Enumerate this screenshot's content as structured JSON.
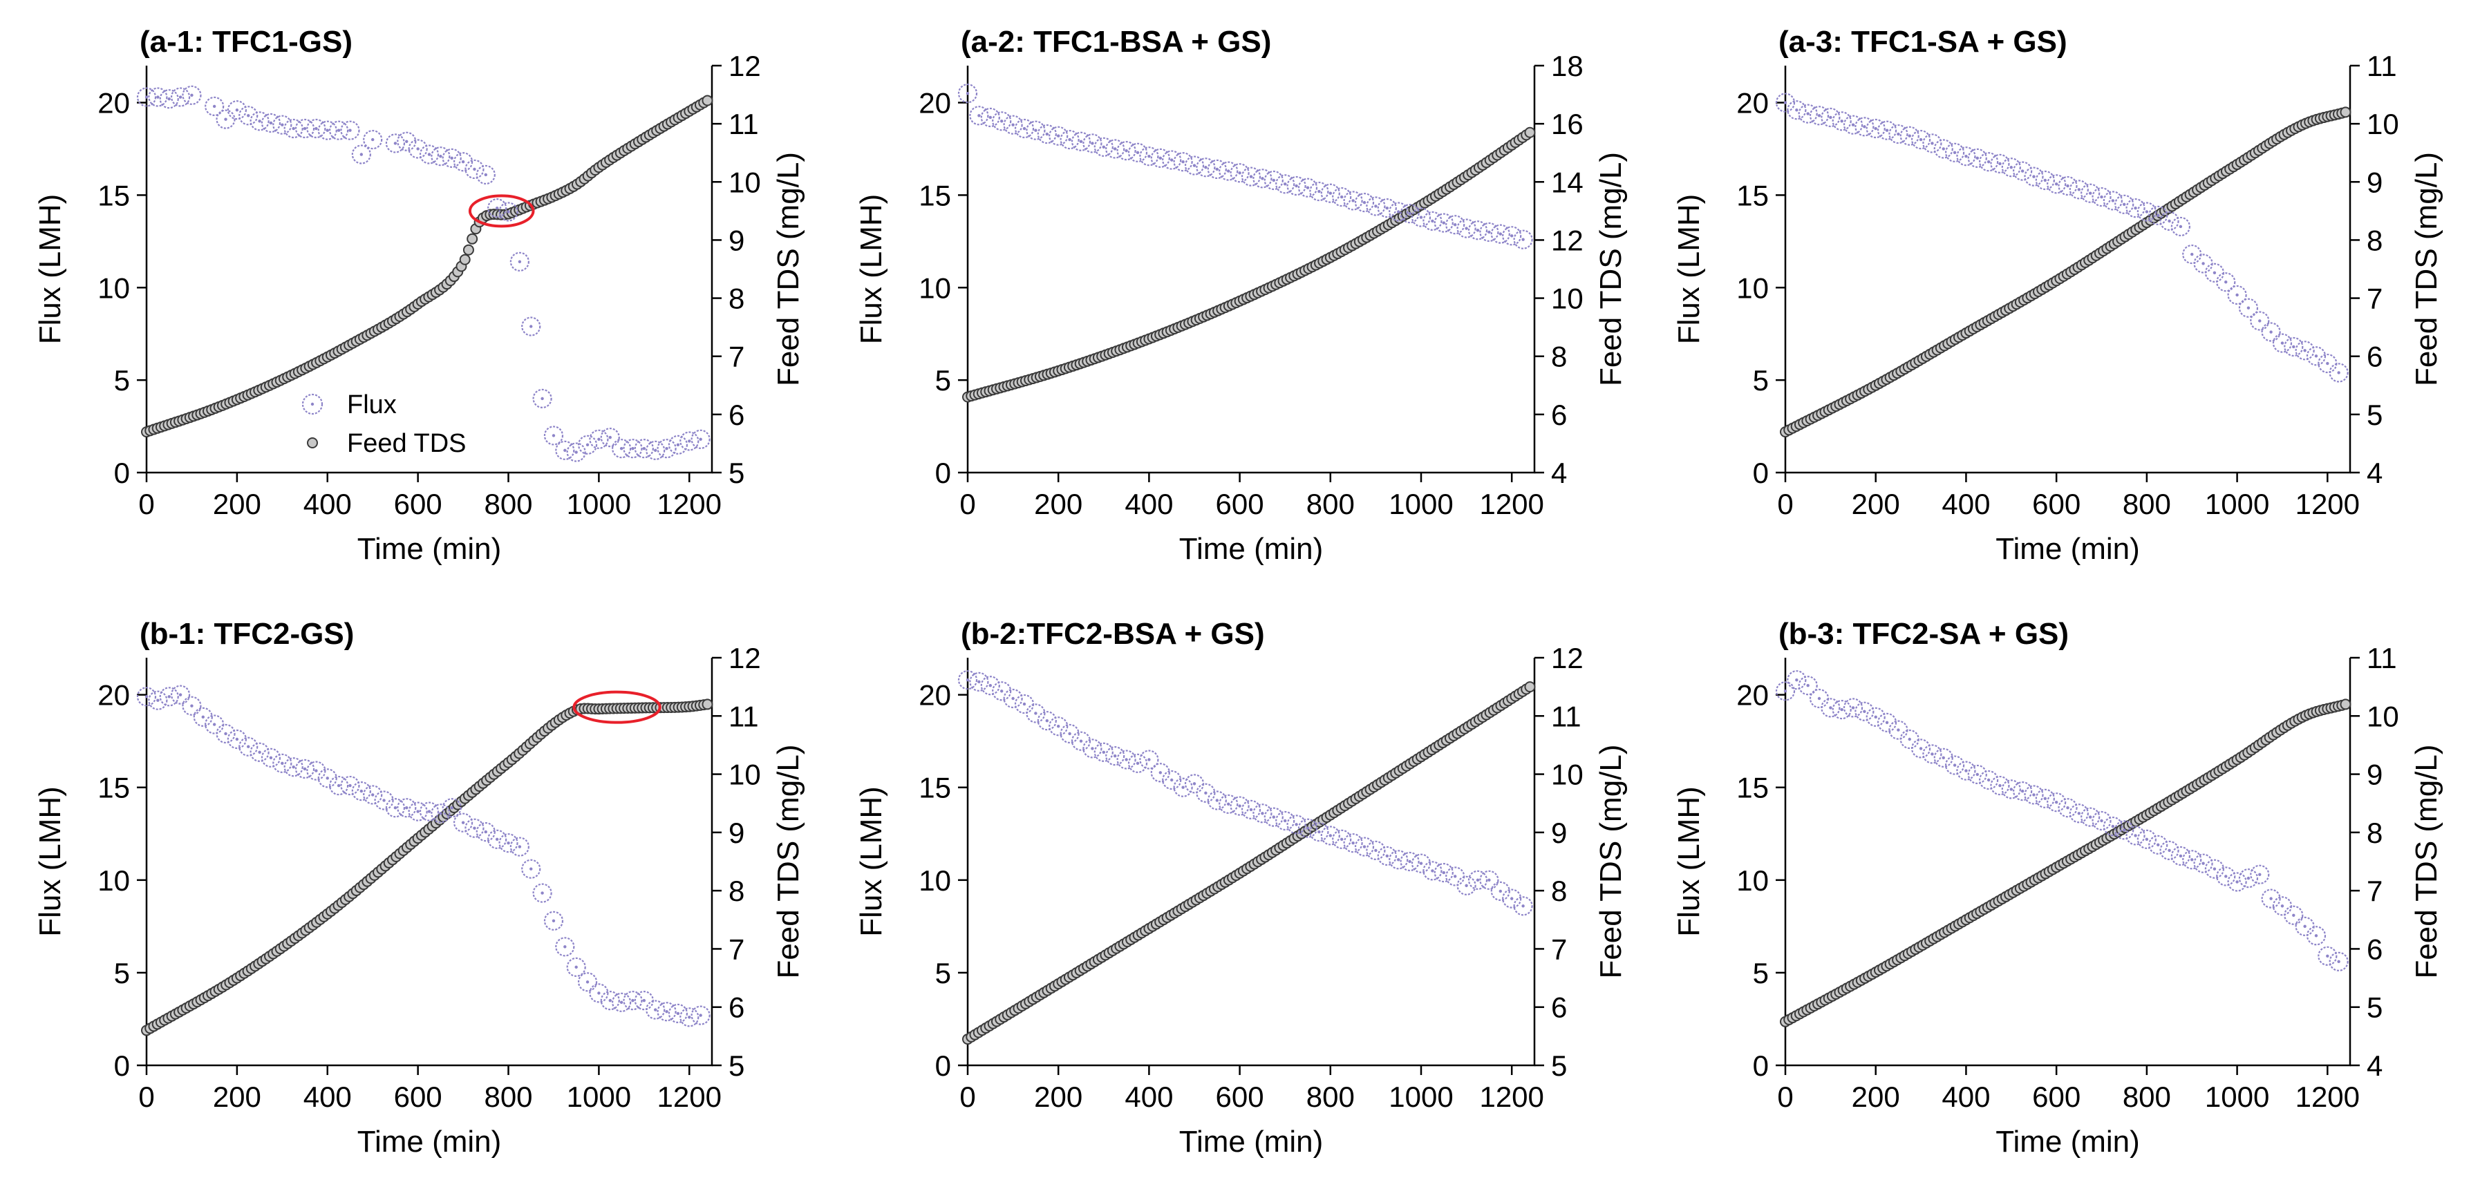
{
  "figure": {
    "description_free": true
  },
  "colors": {
    "flux": "#8d84c8",
    "tds": "#3a3a3a",
    "highlight": "#e8202a",
    "axis": "#000000"
  },
  "legend": {
    "flux_label": "Flux",
    "tds_label": "Feed TDS",
    "placement": "lower-left of panel a-1"
  },
  "chart_data": [
    {
      "id": "a1",
      "type": "scatter",
      "title": "(a-1: TFC1-GS)",
      "xlabel": "Time (min)",
      "ylabel": "Flux (LMH)",
      "y2label": "Feed TDS (mg/L)",
      "xlim": [
        0,
        1250
      ],
      "xticks": [
        0,
        200,
        400,
        600,
        800,
        1000,
        1200
      ],
      "ylim": [
        0,
        22
      ],
      "yticks": [
        0,
        5,
        10,
        15,
        20
      ],
      "y2lim": [
        5,
        12
      ],
      "y2ticks": [
        5,
        6,
        7,
        8,
        9,
        10,
        11,
        12
      ],
      "show_legend": true,
      "highlight": {
        "x_center": 785,
        "x_halfwidth": 70,
        "y2_value": 9.5
      },
      "series": [
        {
          "name": "Flux",
          "axis": "left",
          "marker": "flux",
          "x": [
            0,
            25,
            50,
            75,
            100,
            150,
            175,
            200,
            225,
            250,
            275,
            300,
            325,
            350,
            375,
            400,
            425,
            450,
            475,
            500,
            550,
            575,
            600,
            625,
            650,
            675,
            700,
            725,
            750,
            775,
            800,
            825,
            850,
            875,
            900,
            925,
            950,
            975,
            1000,
            1025,
            1050,
            1075,
            1100,
            1125,
            1150,
            1175,
            1200,
            1225
          ],
          "y": [
            20.3,
            20.3,
            20.2,
            20.3,
            20.4,
            19.8,
            19.1,
            19.6,
            19.3,
            19.0,
            18.9,
            18.8,
            18.6,
            18.6,
            18.6,
            18.5,
            18.5,
            18.5,
            17.2,
            18.0,
            17.8,
            17.9,
            17.5,
            17.2,
            17.1,
            17.0,
            16.8,
            16.4,
            16.1,
            14.3,
            14.1,
            11.4,
            7.9,
            4.0,
            2.0,
            1.2,
            1.1,
            1.5,
            1.8,
            1.9,
            1.3,
            1.3,
            1.3,
            1.2,
            1.3,
            1.5,
            1.7,
            1.8
          ]
        },
        {
          "name": "Feed TDS",
          "axis": "right",
          "marker": "tds",
          "model": "tds",
          "x0": 0,
          "x1": 1240,
          "step": 8,
          "knots_x": [
            0,
            150,
            300,
            450,
            600,
            700,
            735,
            800,
            850,
            900,
            950,
            1000,
            1100,
            1240
          ],
          "knots_y": [
            5.7,
            6.1,
            6.6,
            7.2,
            7.9,
            8.6,
            9.3,
            9.45,
            9.6,
            9.75,
            9.95,
            10.25,
            10.75,
            11.4
          ]
        }
      ]
    },
    {
      "id": "a2",
      "type": "scatter",
      "title": "(a-2: TFC1-BSA + GS)",
      "xlabel": "Time (min)",
      "ylabel": "Flux (LMH)",
      "y2label": "Feed TDS (mg/L)",
      "xlim": [
        0,
        1250
      ],
      "xticks": [
        0,
        200,
        400,
        600,
        800,
        1000,
        1200
      ],
      "ylim": [
        0,
        22
      ],
      "yticks": [
        0,
        5,
        10,
        15,
        20
      ],
      "y2lim": [
        4,
        18
      ],
      "y2ticks": [
        4,
        6,
        8,
        10,
        12,
        14,
        16,
        18
      ],
      "show_legend": false,
      "highlight": null,
      "series": [
        {
          "name": "Flux",
          "axis": "left",
          "marker": "flux",
          "x": [
            0,
            25,
            50,
            75,
            100,
            125,
            150,
            175,
            200,
            225,
            250,
            275,
            300,
            325,
            350,
            375,
            400,
            425,
            450,
            475,
            500,
            525,
            550,
            575,
            600,
            625,
            650,
            675,
            700,
            725,
            750,
            775,
            800,
            825,
            850,
            875,
            900,
            925,
            950,
            975,
            1000,
            1025,
            1050,
            1075,
            1100,
            1125,
            1150,
            1175,
            1200,
            1225
          ],
          "y": [
            20.5,
            19.3,
            19.2,
            19.0,
            18.8,
            18.6,
            18.5,
            18.3,
            18.2,
            18.0,
            17.9,
            17.8,
            17.6,
            17.5,
            17.4,
            17.3,
            17.1,
            17.0,
            16.9,
            16.8,
            16.6,
            16.5,
            16.4,
            16.3,
            16.2,
            16.0,
            15.9,
            15.8,
            15.6,
            15.5,
            15.4,
            15.2,
            15.1,
            14.9,
            14.7,
            14.6,
            14.4,
            14.3,
            14.1,
            14.0,
            13.8,
            13.6,
            13.5,
            13.4,
            13.2,
            13.1,
            13.0,
            12.9,
            12.8,
            12.6
          ]
        },
        {
          "name": "Feed TDS",
          "axis": "right",
          "marker": "tds",
          "model": "tds",
          "x0": 0,
          "x1": 1240,
          "step": 8,
          "knots_x": [
            0,
            200,
            400,
            600,
            800,
            1000,
            1100,
            1240
          ],
          "knots_y": [
            6.6,
            7.5,
            8.6,
            9.9,
            11.4,
            13.2,
            14.2,
            15.7
          ]
        }
      ]
    },
    {
      "id": "a3",
      "type": "scatter",
      "title": "(a-3: TFC1-SA + GS)",
      "xlabel": "Time (min)",
      "ylabel": "Flux (LMH)",
      "y2label": "Feed TDS (mg/L)",
      "xlim": [
        0,
        1250
      ],
      "xticks": [
        0,
        200,
        400,
        600,
        800,
        1000,
        1200
      ],
      "ylim": [
        0,
        22
      ],
      "yticks": [
        0,
        5,
        10,
        15,
        20
      ],
      "y2lim": [
        4,
        11
      ],
      "y2ticks": [
        4,
        5,
        6,
        7,
        8,
        9,
        10,
        11
      ],
      "show_legend": false,
      "highlight": null,
      "series": [
        {
          "name": "Flux",
          "axis": "left",
          "marker": "flux",
          "x": [
            0,
            25,
            50,
            75,
            100,
            125,
            150,
            175,
            200,
            225,
            250,
            275,
            300,
            325,
            350,
            375,
            400,
            425,
            450,
            475,
            500,
            525,
            550,
            575,
            600,
            625,
            650,
            675,
            700,
            725,
            750,
            775,
            800,
            825,
            850,
            875,
            900,
            925,
            950,
            975,
            1000,
            1025,
            1050,
            1075,
            1100,
            1125,
            1150,
            1175,
            1200,
            1225
          ],
          "y": [
            20.0,
            19.6,
            19.4,
            19.3,
            19.2,
            19.0,
            18.8,
            18.7,
            18.6,
            18.5,
            18.3,
            18.2,
            18.0,
            17.8,
            17.5,
            17.3,
            17.1,
            17.0,
            16.8,
            16.7,
            16.5,
            16.3,
            16.0,
            15.8,
            15.6,
            15.5,
            15.3,
            15.1,
            14.9,
            14.7,
            14.5,
            14.3,
            14.1,
            13.9,
            13.6,
            13.3,
            11.8,
            11.3,
            10.8,
            10.3,
            9.6,
            8.9,
            8.2,
            7.6,
            7.0,
            6.8,
            6.6,
            6.3,
            5.9,
            5.4
          ]
        },
        {
          "name": "Feed TDS",
          "axis": "right",
          "marker": "tds",
          "model": "tds",
          "x0": 0,
          "x1": 1240,
          "step": 8,
          "knots_x": [
            0,
            200,
            400,
            600,
            800,
            1000,
            1150,
            1240
          ],
          "knots_y": [
            4.7,
            5.5,
            6.4,
            7.3,
            8.3,
            9.3,
            10.0,
            10.2
          ]
        }
      ]
    },
    {
      "id": "b1",
      "type": "scatter",
      "title": "(b-1: TFC2-GS)",
      "xlabel": "Time (min)",
      "ylabel": "Flux (LMH)",
      "y2label": "Feed TDS (mg/L)",
      "xlim": [
        0,
        1250
      ],
      "xticks": [
        0,
        200,
        400,
        600,
        800,
        1000,
        1200
      ],
      "ylim": [
        0,
        22
      ],
      "yticks": [
        0,
        5,
        10,
        15,
        20
      ],
      "y2lim": [
        5,
        12
      ],
      "y2ticks": [
        5,
        6,
        7,
        8,
        9,
        10,
        11,
        12
      ],
      "show_legend": false,
      "highlight": {
        "x_center": 1040,
        "x_halfwidth": 95,
        "y2_value": 11.15
      },
      "series": [
        {
          "name": "Flux",
          "axis": "left",
          "marker": "flux",
          "x": [
            0,
            25,
            50,
            75,
            100,
            125,
            150,
            175,
            200,
            225,
            250,
            275,
            300,
            325,
            350,
            375,
            400,
            425,
            450,
            475,
            500,
            525,
            550,
            575,
            600,
            625,
            650,
            675,
            700,
            725,
            750,
            775,
            800,
            825,
            850,
            875,
            900,
            925,
            950,
            975,
            1000,
            1025,
            1050,
            1075,
            1100,
            1125,
            1150,
            1175,
            1200,
            1225
          ],
          "y": [
            19.9,
            19.7,
            19.9,
            20.0,
            19.4,
            18.8,
            18.4,
            17.9,
            17.6,
            17.2,
            16.9,
            16.6,
            16.3,
            16.1,
            16.0,
            15.9,
            15.5,
            15.1,
            15.1,
            14.8,
            14.6,
            14.3,
            13.9,
            13.9,
            13.7,
            13.7,
            13.6,
            13.9,
            13.1,
            12.8,
            12.6,
            12.2,
            12.0,
            11.8,
            10.6,
            9.3,
            7.8,
            6.4,
            5.3,
            4.5,
            3.9,
            3.5,
            3.4,
            3.5,
            3.5,
            3.0,
            2.9,
            2.8,
            2.6,
            2.7
          ]
        },
        {
          "name": "Feed TDS",
          "axis": "right",
          "marker": "tds",
          "model": "tds",
          "x0": 0,
          "x1": 1240,
          "step": 8,
          "knots_x": [
            0,
            200,
            400,
            600,
            800,
            950,
            1000,
            1100,
            1200,
            1240
          ],
          "knots_y": [
            5.6,
            6.5,
            7.6,
            8.9,
            10.2,
            11.1,
            11.12,
            11.14,
            11.16,
            11.2
          ]
        }
      ]
    },
    {
      "id": "b2",
      "type": "scatter",
      "title": "(b-2:TFC2-BSA + GS)",
      "xlabel": "Time (min)",
      "ylabel": "Flux (LMH)",
      "y2label": "Feed TDS (mg/L)",
      "xlim": [
        0,
        1250
      ],
      "xticks": [
        0,
        200,
        400,
        600,
        800,
        1000,
        1200
      ],
      "ylim": [
        0,
        22
      ],
      "yticks": [
        0,
        5,
        10,
        15,
        20
      ],
      "y2lim": [
        5,
        12
      ],
      "y2ticks": [
        5,
        6,
        7,
        8,
        9,
        10,
        11,
        12
      ],
      "show_legend": false,
      "highlight": null,
      "series": [
        {
          "name": "Flux",
          "axis": "left",
          "marker": "flux",
          "x": [
            0,
            25,
            50,
            75,
            100,
            125,
            150,
            175,
            200,
            225,
            250,
            275,
            300,
            325,
            350,
            375,
            400,
            425,
            450,
            475,
            500,
            525,
            550,
            575,
            600,
            625,
            650,
            675,
            700,
            725,
            750,
            775,
            800,
            825,
            850,
            875,
            900,
            925,
            950,
            975,
            1000,
            1025,
            1050,
            1075,
            1100,
            1125,
            1150,
            1175,
            1200,
            1225
          ],
          "y": [
            20.8,
            20.7,
            20.5,
            20.2,
            19.8,
            19.5,
            19.0,
            18.6,
            18.3,
            17.9,
            17.5,
            17.1,
            16.9,
            16.7,
            16.5,
            16.3,
            16.5,
            15.8,
            15.4,
            15.0,
            15.2,
            14.7,
            14.3,
            14.1,
            14.0,
            13.8,
            13.6,
            13.4,
            13.2,
            13.0,
            12.8,
            12.6,
            12.4,
            12.2,
            12.0,
            11.8,
            11.6,
            11.3,
            11.1,
            11.0,
            10.9,
            10.5,
            10.4,
            10.2,
            9.7,
            10.0,
            10.0,
            9.4,
            9.0,
            8.6
          ]
        },
        {
          "name": "Feed TDS",
          "axis": "right",
          "marker": "tds",
          "model": "tds",
          "x0": 0,
          "x1": 1240,
          "step": 8,
          "knots_x": [
            0,
            200,
            400,
            600,
            800,
            1000,
            1240
          ],
          "knots_y": [
            5.45,
            6.4,
            7.35,
            8.3,
            9.3,
            10.3,
            11.5
          ]
        }
      ]
    },
    {
      "id": "b3",
      "type": "scatter",
      "title": "(b-3: TFC2-SA + GS)",
      "xlabel": "Time (min)",
      "ylabel": "Flux (LMH)",
      "y2label": "Feed TDS (mg/L)",
      "xlim": [
        0,
        1250
      ],
      "xticks": [
        0,
        200,
        400,
        600,
        800,
        1000,
        1200
      ],
      "ylim": [
        0,
        22
      ],
      "yticks": [
        0,
        5,
        10,
        15,
        20
      ],
      "y2lim": [
        4,
        11
      ],
      "y2ticks": [
        4,
        5,
        6,
        7,
        8,
        9,
        10,
        11
      ],
      "show_legend": false,
      "highlight": null,
      "series": [
        {
          "name": "Flux",
          "axis": "left",
          "marker": "flux",
          "x": [
            0,
            25,
            50,
            75,
            100,
            125,
            150,
            175,
            200,
            225,
            250,
            275,
            300,
            325,
            350,
            375,
            400,
            425,
            450,
            475,
            500,
            525,
            550,
            575,
            600,
            625,
            650,
            675,
            700,
            725,
            750,
            775,
            800,
            825,
            850,
            875,
            900,
            925,
            950,
            975,
            1000,
            1025,
            1050,
            1075,
            1100,
            1125,
            1150,
            1175,
            1200,
            1225
          ],
          "y": [
            20.2,
            20.8,
            20.5,
            19.8,
            19.3,
            19.2,
            19.3,
            19.1,
            18.8,
            18.5,
            18.1,
            17.6,
            17.1,
            16.8,
            16.6,
            16.2,
            15.9,
            15.7,
            15.4,
            15.1,
            14.9,
            14.8,
            14.6,
            14.4,
            14.2,
            13.9,
            13.6,
            13.4,
            13.2,
            12.9,
            12.7,
            12.4,
            12.2,
            11.9,
            11.6,
            11.3,
            11.1,
            10.9,
            10.6,
            10.2,
            9.9,
            10.1,
            10.3,
            9.0,
            8.6,
            8.1,
            7.5,
            7.0,
            5.9,
            5.6
          ]
        },
        {
          "name": "Feed TDS",
          "axis": "right",
          "marker": "tds",
          "model": "tds",
          "x0": 0,
          "x1": 1240,
          "step": 8,
          "knots_x": [
            0,
            200,
            400,
            600,
            800,
            1000,
            1150,
            1240
          ],
          "knots_y": [
            4.75,
            5.6,
            6.5,
            7.4,
            8.3,
            9.25,
            10.0,
            10.2
          ]
        }
      ]
    }
  ]
}
